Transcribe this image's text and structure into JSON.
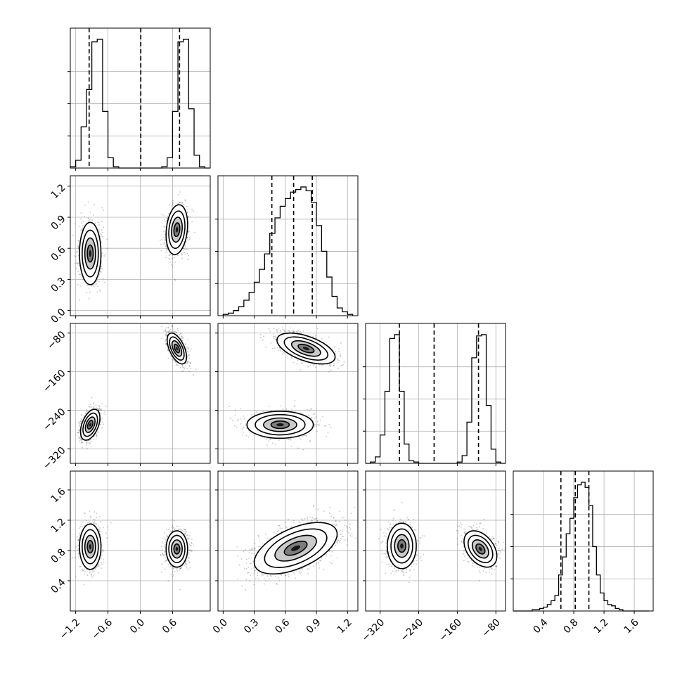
{
  "chart_data": {
    "type": "corner",
    "grid": true,
    "parameters": [
      {
        "range": [
          -1.3,
          1.3
        ],
        "ticks": [
          "−1.2",
          "−0.6",
          "0.0",
          "0.6"
        ],
        "tick_values": [
          -1.2,
          -0.6,
          0.0,
          0.6
        ],
        "quantiles": [
          -0.95,
          0.01,
          0.73
        ],
        "hist": {
          "edges": [
            -1.3,
            -1.2,
            -1.1,
            -1.0,
            -0.9,
            -0.8,
            -0.7,
            -0.6,
            -0.5,
            -0.4,
            -0.3,
            -0.2,
            -0.1,
            0.0,
            0.1,
            0.2,
            0.3,
            0.4,
            0.5,
            0.6,
            0.7,
            0.8,
            0.9,
            1.0,
            1.1,
            1.2,
            1.3
          ],
          "counts": [
            0.01,
            0.06,
            0.32,
            0.61,
            0.98,
            1.0,
            0.44,
            0.08,
            0.01,
            0.0,
            0.0,
            0.0,
            0.0,
            0.0,
            0.0,
            0.0,
            0.0,
            0.01,
            0.08,
            0.44,
            0.98,
            1.0,
            0.46,
            0.1,
            0.01,
            0.0
          ]
        }
      },
      {
        "range": [
          -0.05,
          1.3
        ],
        "ticks": [
          "0.0",
          "0.3",
          "0.6",
          "0.9",
          "1.2"
        ],
        "tick_values": [
          0.0,
          0.3,
          0.6,
          0.9,
          1.2
        ],
        "quantiles": [
          0.47,
          0.68,
          0.86
        ],
        "hist": {
          "edges": [
            0.0,
            0.05,
            0.1,
            0.15,
            0.2,
            0.25,
            0.3,
            0.35,
            0.4,
            0.45,
            0.5,
            0.55,
            0.6,
            0.65,
            0.7,
            0.75,
            0.8,
            0.85,
            0.9,
            0.95,
            1.0,
            1.05,
            1.1,
            1.15,
            1.2,
            1.25
          ],
          "counts": [
            0.01,
            0.02,
            0.04,
            0.07,
            0.12,
            0.18,
            0.26,
            0.36,
            0.48,
            0.64,
            0.76,
            0.85,
            0.91,
            0.96,
            0.98,
            1.0,
            0.97,
            0.88,
            0.7,
            0.5,
            0.3,
            0.15,
            0.06,
            0.03,
            0.01
          ]
        }
      },
      {
        "range": [
          -350,
          -60
        ],
        "ticks": [
          "−320",
          "−240",
          "−160",
          "−80"
        ],
        "tick_values": [
          -320,
          -240,
          -160,
          -80
        ],
        "quantiles": [
          -280,
          -208,
          -116
        ],
        "hist": {
          "edges": [
            -350,
            -340,
            -330,
            -320,
            -310,
            -300,
            -290,
            -280,
            -270,
            -260,
            -250,
            -240,
            -230,
            -220,
            -210,
            -200,
            -190,
            -180,
            -170,
            -160,
            -150,
            -140,
            -130,
            -120,
            -110,
            -100,
            -90,
            -80,
            -70,
            -60
          ],
          "counts": [
            0.0,
            0.01,
            0.05,
            0.22,
            0.56,
            0.97,
            1.0,
            0.56,
            0.15,
            0.02,
            0.01,
            0.0,
            0.0,
            0.0,
            0.0,
            0.0,
            0.0,
            0.0,
            0.0,
            0.01,
            0.06,
            0.32,
            0.82,
            0.99,
            1.0,
            0.45,
            0.11,
            0.01,
            0.0
          ]
        }
      },
      {
        "range": [
          0.0,
          1.85
        ],
        "ticks": [
          "0.4",
          "0.8",
          "1.2",
          "1.6"
        ],
        "tick_values": [
          0.4,
          0.8,
          1.2,
          1.6
        ],
        "quantiles": [
          0.63,
          0.82,
          1.0
        ],
        "hist": {
          "edges": [
            0.0,
            0.05,
            0.1,
            0.15,
            0.2,
            0.25,
            0.3,
            0.35,
            0.4,
            0.45,
            0.5,
            0.55,
            0.6,
            0.65,
            0.7,
            0.75,
            0.8,
            0.85,
            0.9,
            0.95,
            1.0,
            1.05,
            1.1,
            1.15,
            1.2,
            1.25,
            1.3,
            1.35,
            1.4,
            1.45,
            1.5,
            1.55,
            1.6,
            1.65,
            1.7,
            1.75,
            1.8
          ],
          "counts": [
            0.0,
            0.0,
            0.0,
            0.0,
            0.0,
            0.01,
            0.01,
            0.02,
            0.03,
            0.05,
            0.08,
            0.12,
            0.28,
            0.42,
            0.6,
            0.72,
            0.88,
            0.98,
            1.0,
            0.96,
            0.82,
            0.5,
            0.28,
            0.14,
            0.08,
            0.05,
            0.04,
            0.02,
            0.01,
            0.0,
            0.0,
            0.0,
            0.0,
            0.0,
            0.0,
            0.0
          ]
        }
      }
    ],
    "pairs": [
      {
        "row": 1,
        "col": 0,
        "modes": [
          {
            "cx": -0.93,
            "cy": 0.55,
            "sx": 0.1,
            "sy": 0.15,
            "rho": 0.0,
            "n": 900
          },
          {
            "cx": 0.68,
            "cy": 0.78,
            "sx": 0.1,
            "sy": 0.12,
            "rho": 0.2,
            "n": 900
          }
        ]
      },
      {
        "row": 2,
        "col": 0,
        "modes": [
          {
            "cx": -0.93,
            "cy": -270,
            "sx": 0.09,
            "sy": 16,
            "rho": 0.45,
            "n": 900
          },
          {
            "cx": 0.68,
            "cy": -112,
            "sx": 0.09,
            "sy": 16,
            "rho": -0.55,
            "n": 900
          }
        ]
      },
      {
        "row": 2,
        "col": 1,
        "modes": [
          {
            "cx": 0.8,
            "cy": -112,
            "sx": 0.14,
            "sy": 16,
            "rho": -0.55,
            "n": 1000
          },
          {
            "cx": 0.55,
            "cy": -270,
            "sx": 0.16,
            "sy": 14,
            "rho": 0.0,
            "n": 1000
          }
        ]
      },
      {
        "row": 3,
        "col": 0,
        "modes": [
          {
            "cx": -0.93,
            "cy": 0.85,
            "sx": 0.1,
            "sy": 0.15,
            "rho": 0.0,
            "n": 900
          },
          {
            "cx": 0.68,
            "cy": 0.82,
            "sx": 0.1,
            "sy": 0.12,
            "rho": 0.0,
            "n": 900
          }
        ]
      },
      {
        "row": 3,
        "col": 1,
        "modes": [
          {
            "cx": 0.7,
            "cy": 0.83,
            "sx": 0.2,
            "sy": 0.17,
            "rho": 0.55,
            "n": 1800
          }
        ]
      },
      {
        "row": 3,
        "col": 2,
        "modes": [
          {
            "cx": -275,
            "cy": 0.86,
            "sx": 15,
            "sy": 0.15,
            "rho": 0.0,
            "n": 900
          },
          {
            "cx": -112,
            "cy": 0.82,
            "sx": 17,
            "sy": 0.12,
            "rho": -0.4,
            "n": 900
          }
        ]
      }
    ]
  }
}
